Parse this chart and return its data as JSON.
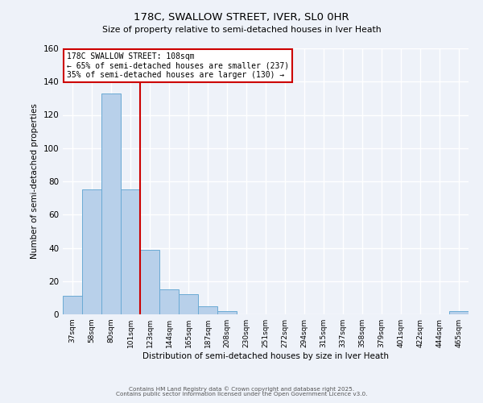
{
  "title": "178C, SWALLOW STREET, IVER, SL0 0HR",
  "subtitle": "Size of property relative to semi-detached houses in Iver Heath",
  "xlabel": "Distribution of semi-detached houses by size in Iver Heath",
  "ylabel": "Number of semi-detached properties",
  "bar_labels": [
    "37sqm",
    "58sqm",
    "80sqm",
    "101sqm",
    "123sqm",
    "144sqm",
    "165sqm",
    "187sqm",
    "208sqm",
    "230sqm",
    "251sqm",
    "272sqm",
    "294sqm",
    "315sqm",
    "337sqm",
    "358sqm",
    "379sqm",
    "401sqm",
    "422sqm",
    "444sqm",
    "465sqm"
  ],
  "bar_values": [
    11,
    75,
    133,
    75,
    39,
    15,
    12,
    5,
    2,
    0,
    0,
    0,
    0,
    0,
    0,
    0,
    0,
    0,
    0,
    0,
    2
  ],
  "bar_color": "#b8d0ea",
  "bar_edge_color": "#6aaad4",
  "background_color": "#eef2f9",
  "grid_color": "#ffffff",
  "vline_color": "#cc0000",
  "ylim": [
    0,
    160
  ],
  "yticks": [
    0,
    20,
    40,
    60,
    80,
    100,
    120,
    140,
    160
  ],
  "annotation_title": "178C SWALLOW STREET: 108sqm",
  "annotation_line1": "← 65% of semi-detached houses are smaller (237)",
  "annotation_line2": "35% of semi-detached houses are larger (130) →",
  "annotation_box_color": "#ffffff",
  "annotation_border_color": "#cc0000",
  "footer1": "Contains HM Land Registry data © Crown copyright and database right 2025.",
  "footer2": "Contains public sector information licensed under the Open Government Licence v3.0.",
  "vline_bar_index": 3
}
